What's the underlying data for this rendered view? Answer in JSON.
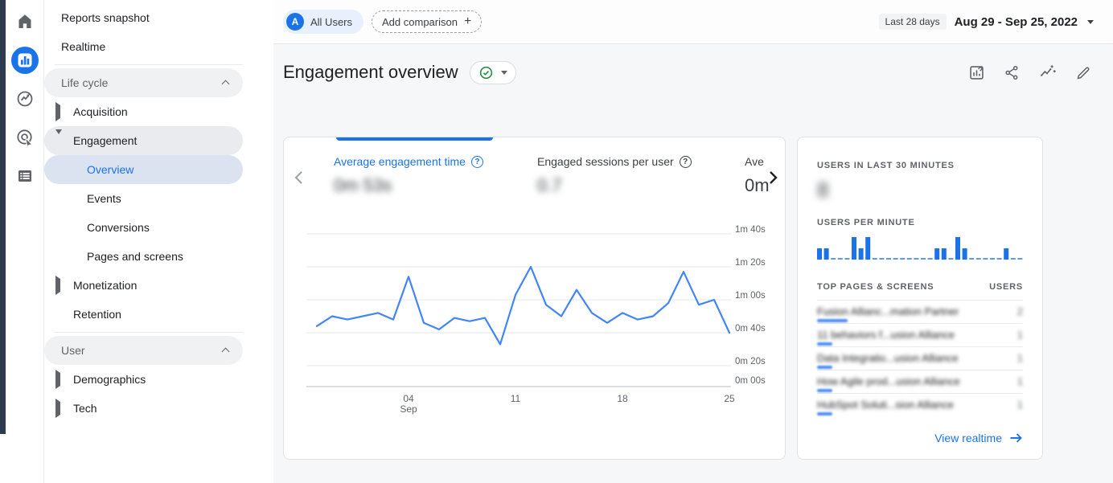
{
  "topbar": {
    "all_users": "All Users",
    "avatar_letter": "A",
    "add_comparison": "Add comparison",
    "date_preset": "Last 28 days",
    "date_range": "Aug 29 - Sep 25, 2022"
  },
  "header": {
    "title": "Engagement overview"
  },
  "sidebar": {
    "reports_snapshot": "Reports snapshot",
    "realtime": "Realtime",
    "life_cycle_header": "Life cycle",
    "acquisition": "Acquisition",
    "engagement": "Engagement",
    "overview": "Overview",
    "events": "Events",
    "conversions": "Conversions",
    "pages_and_screens": "Pages and screens",
    "monetization": "Monetization",
    "retention": "Retention",
    "user_header": "User",
    "demographics": "Demographics",
    "tech": "Tech"
  },
  "metrics": {
    "tabs": [
      {
        "label": "Average engagement time",
        "value": "0m 53s",
        "active": true,
        "blurred": true
      },
      {
        "label": "Engaged sessions per user",
        "value": "0.7",
        "active": false,
        "blurred": true
      },
      {
        "label": "Ave",
        "value": "0m",
        "active": false,
        "blurred": false
      }
    ]
  },
  "chart_data": [
    {
      "type": "line",
      "title": "Average engagement time",
      "x_dates": [
        "Aug 29",
        "Aug 30",
        "Aug 31",
        "Sep 01",
        "Sep 02",
        "Sep 03",
        "Sep 04",
        "Sep 05",
        "Sep 06",
        "Sep 07",
        "Sep 08",
        "Sep 09",
        "Sep 10",
        "Sep 11",
        "Sep 12",
        "Sep 13",
        "Sep 14",
        "Sep 15",
        "Sep 16",
        "Sep 17",
        "Sep 18",
        "Sep 19",
        "Sep 20",
        "Sep 21",
        "Sep 22",
        "Sep 23",
        "Sep 24",
        "Sep 25"
      ],
      "values_seconds": [
        44,
        50,
        48,
        50,
        52,
        48,
        74,
        46,
        42,
        49,
        47,
        49,
        33,
        63,
        80,
        57,
        50,
        66,
        52,
        46,
        52,
        48,
        50,
        58,
        77,
        57,
        60,
        40
      ],
      "y_ticks": [
        "1m 40s",
        "1m 20s",
        "1m 00s",
        "0m 40s",
        "0m 20s",
        "0m 00s"
      ],
      "y_tick_seconds": [
        100,
        80,
        60,
        40,
        20,
        0
      ],
      "x_ticks": [
        {
          "label": "04",
          "sublabel": "Sep",
          "day_index": 6
        },
        {
          "label": "11",
          "day_index": 13
        },
        {
          "label": "18",
          "day_index": 20
        },
        {
          "label": "25",
          "day_index": 27
        }
      ],
      "ylim_seconds": [
        0,
        110
      ],
      "grid": true,
      "legend": "none",
      "line_color": "#4285f4"
    },
    {
      "type": "bar",
      "title": "USERS PER MINUTE",
      "minutes": 30,
      "values": [
        1,
        1,
        0,
        0,
        0,
        2,
        1,
        2,
        0,
        0,
        0,
        0,
        0,
        0,
        0,
        0,
        0,
        1,
        1,
        0,
        2,
        1,
        0,
        0,
        0,
        0,
        0,
        1,
        0,
        0
      ],
      "bar_color": "#1a73e8"
    }
  ],
  "realtime": {
    "users_30min_label": "USERS IN LAST 30 MINUTES",
    "users_30min_value": "8",
    "users_per_minute_label": "USERS PER MINUTE",
    "top_pages_label": "TOP PAGES & SCREENS",
    "users_col_label": "USERS",
    "rows": [
      {
        "title": "Fusion Allianc...mation Partner",
        "users": "2"
      },
      {
        "title": "11 behaviors f...usion Alliance",
        "users": "1"
      },
      {
        "title": "Data Integratio...usion Alliance",
        "users": "1"
      },
      {
        "title": "How Agile prod...usion Alliance",
        "users": "1"
      },
      {
        "title": "HubSpot Soluti...sion Alliance",
        "users": "1"
      }
    ],
    "view_realtime": "View realtime"
  },
  "colors": {
    "accent_blue": "#1a73e8",
    "line_blue": "#4285f4",
    "success_green": "#1e8e3e",
    "text_gray": "#5f6368"
  },
  "icons": [
    "home-icon",
    "reports-icon",
    "explore-icon",
    "advertising-icon",
    "library-icon",
    "customize-report-icon",
    "share-icon",
    "insights-icon",
    "edit-icon",
    "help-icon",
    "check-circle-icon",
    "chevron-left-icon",
    "chevron-right-icon",
    "arrow-right-icon"
  ]
}
